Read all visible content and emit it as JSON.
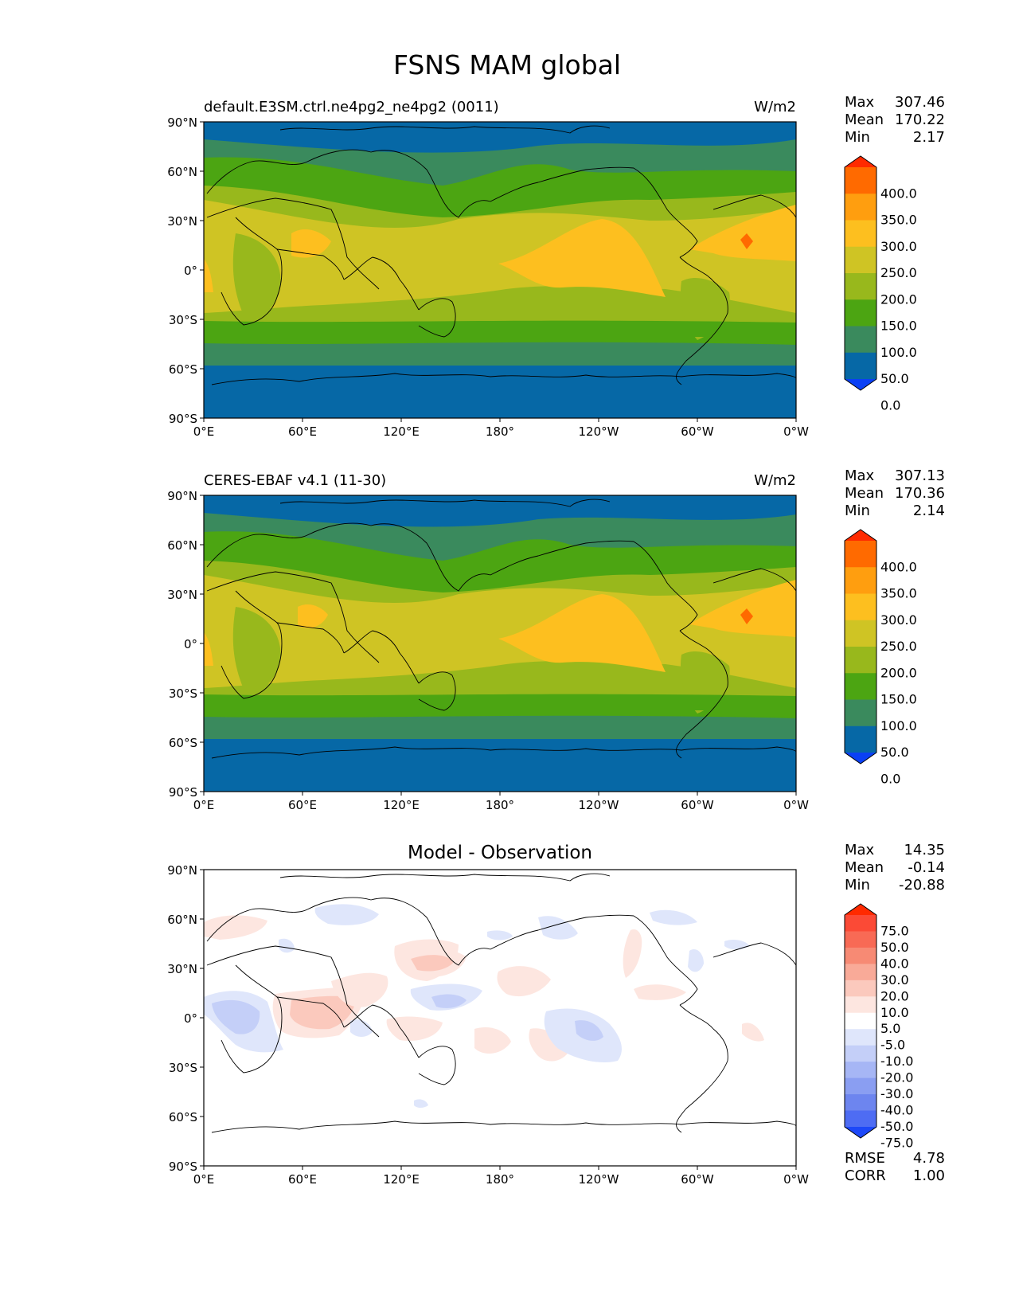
{
  "figure": {
    "title": "FSNS MAM global"
  },
  "axes": {
    "lat_ticks": [
      "90°N",
      "60°N",
      "30°N",
      "0°",
      "30°S",
      "60°S",
      "90°S"
    ],
    "lon_ticks": [
      "0°E",
      "60°E",
      "120°E",
      "180°",
      "120°W",
      "60°W",
      "0°W"
    ]
  },
  "panels": [
    {
      "id": "test",
      "left_title": "default.E3SM.ctrl.ne4pg2_ne4pg2 (0011)",
      "center_title": "",
      "units": "W/m2",
      "stats": [
        {
          "label": "Max",
          "value": "307.46"
        },
        {
          "label": "Mean",
          "value": "170.22"
        },
        {
          "label": "Min",
          "value": "2.17"
        }
      ],
      "colorbar": {
        "labels": [
          "400.0",
          "350.0",
          "300.0",
          "250.0",
          "200.0",
          "150.0",
          "100.0",
          "50.0",
          "0.0"
        ],
        "colors": [
          "#ff2a00",
          "#ff6a00",
          "#ff9e0f",
          "#fdbf1f",
          "#cfc424",
          "#98b81c",
          "#4ca512",
          "#3a8a5d",
          "#0668a6",
          "#0a40f5"
        ]
      }
    },
    {
      "id": "reference",
      "left_title": "CERES-EBAF v4.1 (11-30)",
      "center_title": "",
      "units": "W/m2",
      "stats": [
        {
          "label": "Max",
          "value": "307.13"
        },
        {
          "label": "Mean",
          "value": "170.36"
        },
        {
          "label": "Min",
          "value": "2.14"
        }
      ],
      "colorbar": {
        "labels": [
          "400.0",
          "350.0",
          "300.0",
          "250.0",
          "200.0",
          "150.0",
          "100.0",
          "50.0",
          "0.0"
        ],
        "colors": [
          "#ff2a00",
          "#ff6a00",
          "#ff9e0f",
          "#fdbf1f",
          "#cfc424",
          "#98b81c",
          "#4ca512",
          "#3a8a5d",
          "#0668a6",
          "#0a40f5"
        ]
      }
    },
    {
      "id": "diff",
      "left_title": "",
      "center_title": "Model - Observation",
      "units": "",
      "stats": [
        {
          "label": "Max",
          "value": "14.35"
        },
        {
          "label": "Mean",
          "value": "-0.14"
        },
        {
          "label": "Min",
          "value": "-20.88"
        }
      ],
      "colorbar": {
        "labels": [
          "75.0",
          "50.0",
          "40.0",
          "30.0",
          "20.0",
          "10.0",
          "5.0",
          "-5.0",
          "-10.0",
          "-20.0",
          "-30.0",
          "-40.0",
          "-50.0",
          "-75.0"
        ],
        "colors": [
          "#ff2a00",
          "#fb4a36",
          "#f86a55",
          "#f78a74",
          "#f9aa98",
          "#fbc9bd",
          "#fde6e0",
          "#ffffff",
          "#dfe6fb",
          "#c4cff8",
          "#a6b6f5",
          "#8a9ef2",
          "#6d85ef",
          "#4e6cf3",
          "#1d48f8"
        ]
      },
      "metrics": [
        {
          "label": "RMSE",
          "value": "4.78"
        },
        {
          "label": "CORR",
          "value": "1.00"
        }
      ]
    }
  ]
}
